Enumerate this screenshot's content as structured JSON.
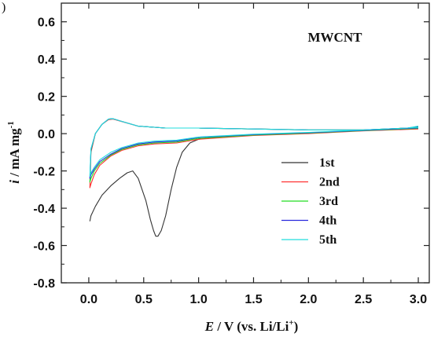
{
  "panel_label": ")",
  "chart_data": {
    "type": "line",
    "title": "MWCNT",
    "xlabel": {
      "var": "E",
      "rest": " / V (vs. Li/Li",
      "sup": "+",
      "close": ")"
    },
    "ylabel": {
      "var": "i",
      "rest": " / mA mg",
      "sup": "-1"
    },
    "xlim": [
      -0.25,
      3.1
    ],
    "ylim": [
      -0.8,
      0.7
    ],
    "xticks": [
      "0.0",
      "0.5",
      "1.0",
      "1.5",
      "2.0",
      "2.5",
      "3.0"
    ],
    "yticks": [
      "-0.8",
      "-0.6",
      "-0.4",
      "-0.2",
      "0.0",
      "0.2",
      "0.4",
      "0.6"
    ],
    "legend_position": "lower-right",
    "colors": {
      "1st": "#333333",
      "2nd": "#ff3030",
      "3rd": "#22dd22",
      "4th": "#2828dd",
      "5th": "#22dddd"
    },
    "series": [
      {
        "name": "1st",
        "x": [
          1.28,
          1.1,
          1.0,
          0.92,
          0.85,
          0.8,
          0.75,
          0.7,
          0.66,
          0.63,
          0.61,
          0.59,
          0.56,
          0.52,
          0.45,
          0.4,
          0.35,
          0.28,
          0.2,
          0.12,
          0.06,
          0.02,
          0.01,
          0.01
        ],
        "y": [
          -0.01,
          -0.02,
          -0.03,
          -0.05,
          -0.1,
          -0.18,
          -0.3,
          -0.44,
          -0.52,
          -0.55,
          -0.55,
          -0.52,
          -0.46,
          -0.36,
          -0.24,
          -0.2,
          -0.21,
          -0.24,
          -0.28,
          -0.33,
          -0.39,
          -0.44,
          -0.47,
          -0.47
        ]
      },
      {
        "name": "2nd",
        "x": [
          3.0,
          2.5,
          2.0,
          1.5,
          1.0,
          0.8,
          0.6,
          0.45,
          0.3,
          0.2,
          0.1,
          0.05,
          0.02,
          0.01,
          0.02,
          0.06,
          0.12,
          0.18,
          0.22,
          0.3,
          0.45,
          0.7,
          1.0,
          1.5,
          2.0,
          2.5,
          2.9,
          3.0
        ],
        "y": [
          0.025,
          0.015,
          0.0,
          -0.01,
          -0.03,
          -0.05,
          -0.055,
          -0.065,
          -0.09,
          -0.12,
          -0.17,
          -0.22,
          -0.27,
          -0.29,
          -0.1,
          0.0,
          0.05,
          0.075,
          0.078,
          0.065,
          0.04,
          0.03,
          0.03,
          0.025,
          0.02,
          0.02,
          0.03,
          0.03
        ]
      },
      {
        "name": "3rd",
        "x": [
          3.0,
          2.5,
          2.0,
          1.5,
          1.0,
          0.8,
          0.6,
          0.45,
          0.3,
          0.2,
          0.1,
          0.05,
          0.02,
          0.01,
          0.02,
          0.06,
          0.12,
          0.18,
          0.22,
          0.3,
          0.45,
          0.7,
          1.0,
          1.5,
          2.0,
          2.5,
          2.9,
          3.0
        ],
        "y": [
          0.028,
          0.016,
          0.003,
          -0.008,
          -0.025,
          -0.045,
          -0.05,
          -0.06,
          -0.085,
          -0.115,
          -0.16,
          -0.2,
          -0.24,
          -0.26,
          -0.09,
          0.0,
          0.05,
          0.078,
          0.08,
          0.066,
          0.04,
          0.03,
          0.03,
          0.025,
          0.02,
          0.02,
          0.03,
          0.035
        ]
      },
      {
        "name": "4th",
        "x": [
          3.0,
          2.5,
          2.0,
          1.5,
          1.0,
          0.8,
          0.6,
          0.45,
          0.3,
          0.2,
          0.1,
          0.05,
          0.02,
          0.01,
          0.02,
          0.06,
          0.12,
          0.18,
          0.22,
          0.3,
          0.45,
          0.7,
          1.0,
          1.5,
          2.0,
          2.5,
          2.9,
          3.0
        ],
        "y": [
          0.03,
          0.018,
          0.005,
          -0.005,
          -0.02,
          -0.04,
          -0.045,
          -0.055,
          -0.08,
          -0.11,
          -0.15,
          -0.19,
          -0.22,
          -0.24,
          -0.085,
          0.0,
          0.05,
          0.078,
          0.08,
          0.066,
          0.04,
          0.03,
          0.03,
          0.025,
          0.02,
          0.02,
          0.03,
          0.038
        ]
      },
      {
        "name": "5th",
        "x": [
          3.0,
          2.5,
          2.0,
          1.5,
          1.0,
          0.8,
          0.6,
          0.45,
          0.3,
          0.2,
          0.1,
          0.05,
          0.02,
          0.01,
          0.02,
          0.06,
          0.12,
          0.18,
          0.22,
          0.3,
          0.45,
          0.7,
          1.0,
          1.5,
          2.0,
          2.5,
          2.9,
          3.0
        ],
        "y": [
          0.032,
          0.02,
          0.007,
          -0.003,
          -0.018,
          -0.035,
          -0.04,
          -0.05,
          -0.075,
          -0.1,
          -0.14,
          -0.18,
          -0.21,
          -0.23,
          -0.08,
          0.0,
          0.05,
          0.078,
          0.08,
          0.066,
          0.04,
          0.03,
          0.03,
          0.025,
          0.02,
          0.02,
          0.03,
          0.04
        ]
      }
    ]
  }
}
